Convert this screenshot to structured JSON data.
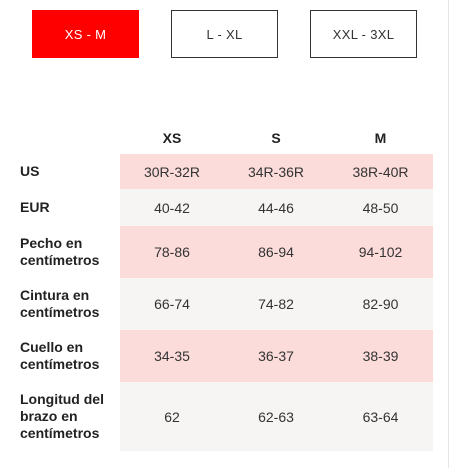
{
  "size_ranges": [
    {
      "label": "XS - M",
      "active": true
    },
    {
      "label": "L - XL",
      "active": false
    },
    {
      "label": "XXL - 3XL",
      "active": false
    }
  ],
  "table": {
    "headers": [
      "",
      "XS",
      "S",
      "M"
    ],
    "rows": [
      {
        "label": "US",
        "values": [
          "30R-32R",
          "34R-36R",
          "38R-40R"
        ]
      },
      {
        "label": "EUR",
        "values": [
          "40-42",
          "44-46",
          "48-50"
        ]
      },
      {
        "label": "Pecho en centímetros",
        "values": [
          "78-86",
          "86-94",
          "94-102"
        ]
      },
      {
        "label": "Cintura en centímetros",
        "values": [
          "66-74",
          "74-82",
          "82-90"
        ]
      },
      {
        "label": "Cuello en centímetros",
        "values": [
          "34-35",
          "36-37",
          "38-39"
        ]
      },
      {
        "label": "Longitud del brazo en centímetros",
        "values": [
          "62",
          "62-63",
          "63-64"
        ]
      }
    ]
  },
  "colors": {
    "active_tab": "#ff0000",
    "row_highlight": "#fbdcdb",
    "row_neutral": "#f6f5f4"
  }
}
